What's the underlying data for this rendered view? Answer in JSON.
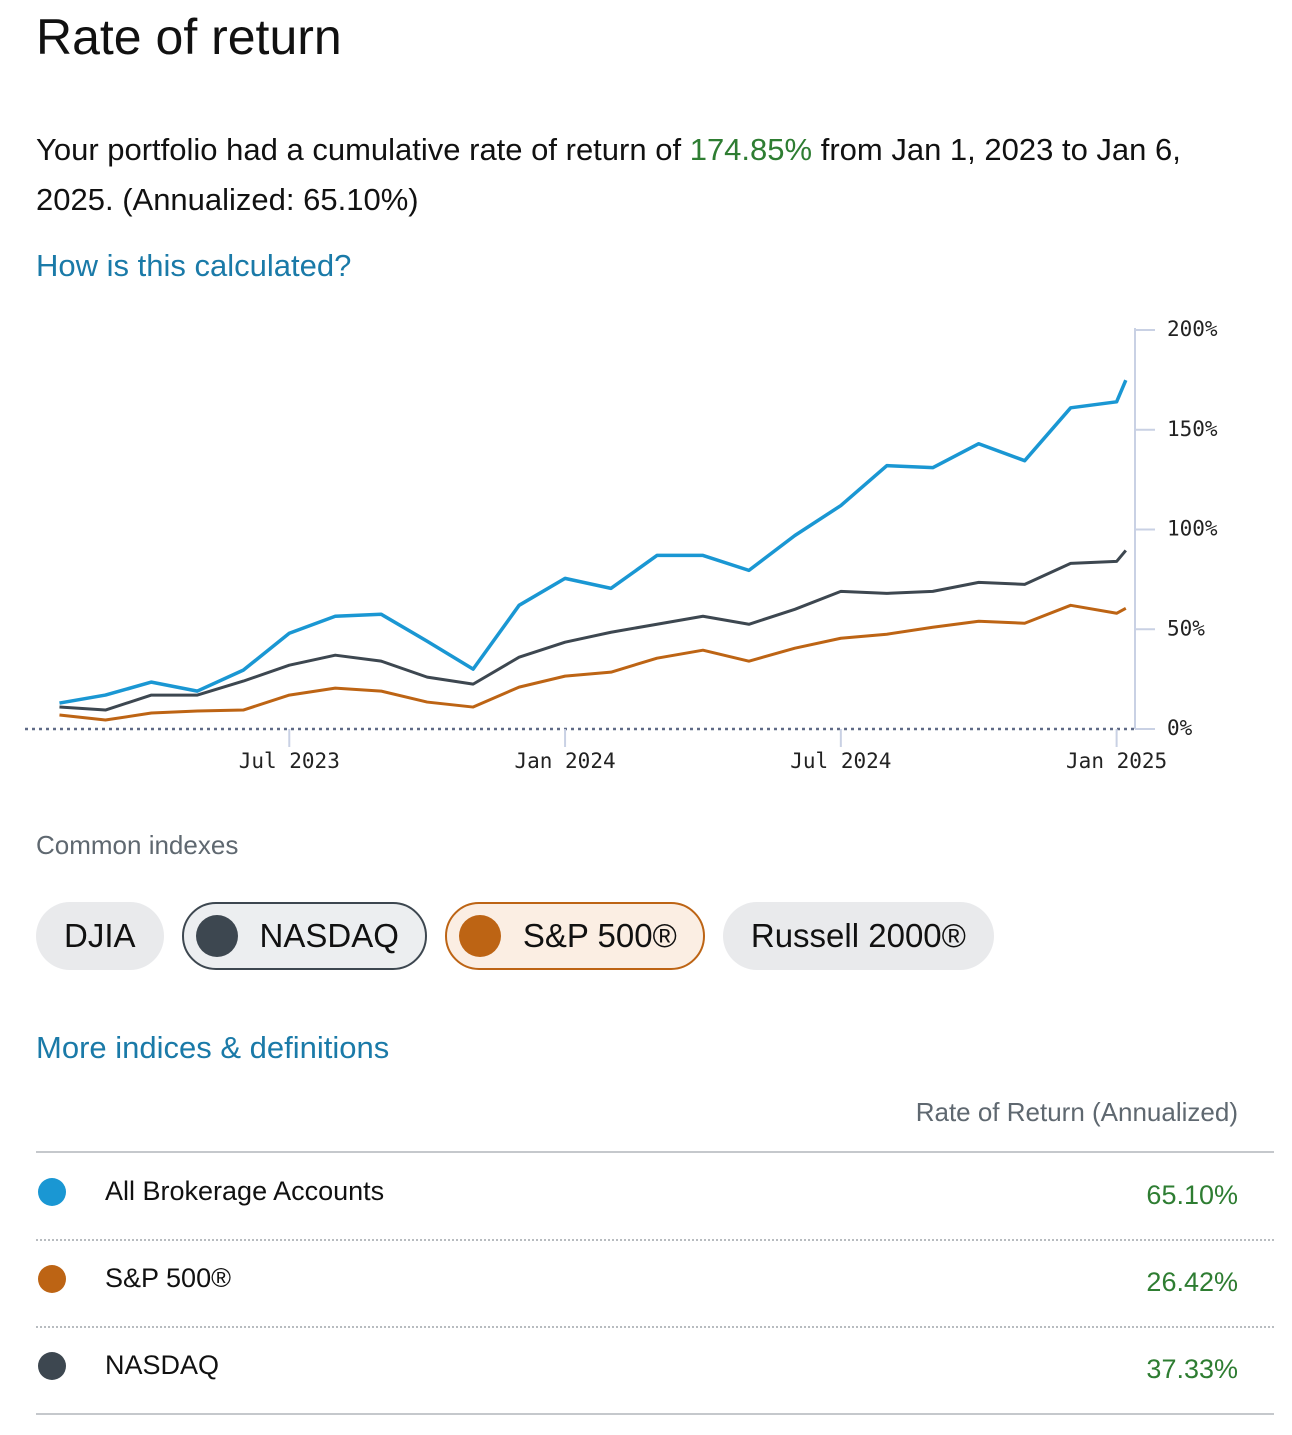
{
  "header": {
    "title": "Rate of return"
  },
  "summary": {
    "before": "Your portfolio had a cumulative rate of return of",
    "highlight": "174.85%",
    "after": "from Jan 1, 2023 to Jan 6, 2025. (Annualized: 65.10%)"
  },
  "calc_link": "How is this calculated?",
  "chart_data": {
    "type": "line",
    "x": [
      1,
      2,
      3,
      4,
      5,
      6,
      7,
      8,
      9,
      10,
      11,
      12,
      13,
      14,
      15,
      16,
      17,
      18,
      19,
      20,
      21,
      22,
      23,
      24,
      24.2
    ],
    "xlim": [
      0.25,
      24.4
    ],
    "xticks": [
      {
        "value": 6,
        "label": "Jul 2023"
      },
      {
        "value": 12,
        "label": "Jan 2024"
      },
      {
        "value": 18,
        "label": "Jul 2024"
      },
      {
        "value": 24,
        "label": "Jan 2025"
      }
    ],
    "ylim": [
      0,
      200
    ],
    "yticks": [
      {
        "value": 0,
        "label": "0%"
      },
      {
        "value": 50,
        "label": "50%"
      },
      {
        "value": 100,
        "label": "100%"
      },
      {
        "value": 150,
        "label": "150%"
      },
      {
        "value": 200,
        "label": "200%"
      }
    ],
    "series": [
      {
        "name": "All Brokerage Accounts",
        "color": "#1a97d3",
        "values": [
          13,
          17,
          23.5,
          19,
          29.5,
          48,
          56.5,
          57.5,
          44,
          30,
          62,
          75.5,
          70.5,
          87,
          87,
          79.5,
          97,
          112,
          132,
          131,
          143,
          134.5,
          161,
          164,
          174.85
        ]
      },
      {
        "name": "S&P 500®",
        "color": "#bd6414",
        "values": [
          7,
          4.5,
          8,
          9,
          9.5,
          17,
          20.5,
          19,
          13.5,
          11,
          21,
          26.5,
          28.5,
          35.5,
          39.5,
          34,
          40.5,
          45.5,
          47.5,
          51,
          54,
          53,
          62,
          58,
          60.5
        ]
      },
      {
        "name": "NASDAQ",
        "color": "#3d4750",
        "values": [
          11,
          9.5,
          17,
          17,
          24,
          32,
          37,
          34,
          26,
          22.5,
          36,
          43.5,
          48.5,
          52.5,
          56.5,
          52.5,
          60,
          69,
          68,
          69,
          73.5,
          72.5,
          83,
          84,
          89.5
        ]
      }
    ]
  },
  "indexes": {
    "heading": "Common indexes",
    "chips": [
      {
        "label": "DJIA",
        "selected": false
      },
      {
        "label": "NASDAQ",
        "selected": true,
        "color": "#3d4750"
      },
      {
        "label": "S&P 500®",
        "selected": true,
        "color": "#bd6414"
      },
      {
        "label": "Russell 2000®",
        "selected": false
      }
    ]
  },
  "more_link": "More indices & definitions",
  "table": {
    "header": "Rate of Return (Annualized)",
    "rows": [
      {
        "value": "65.10%"
      },
      {
        "value": "26.42%"
      },
      {
        "value": "37.33%"
      }
    ]
  }
}
